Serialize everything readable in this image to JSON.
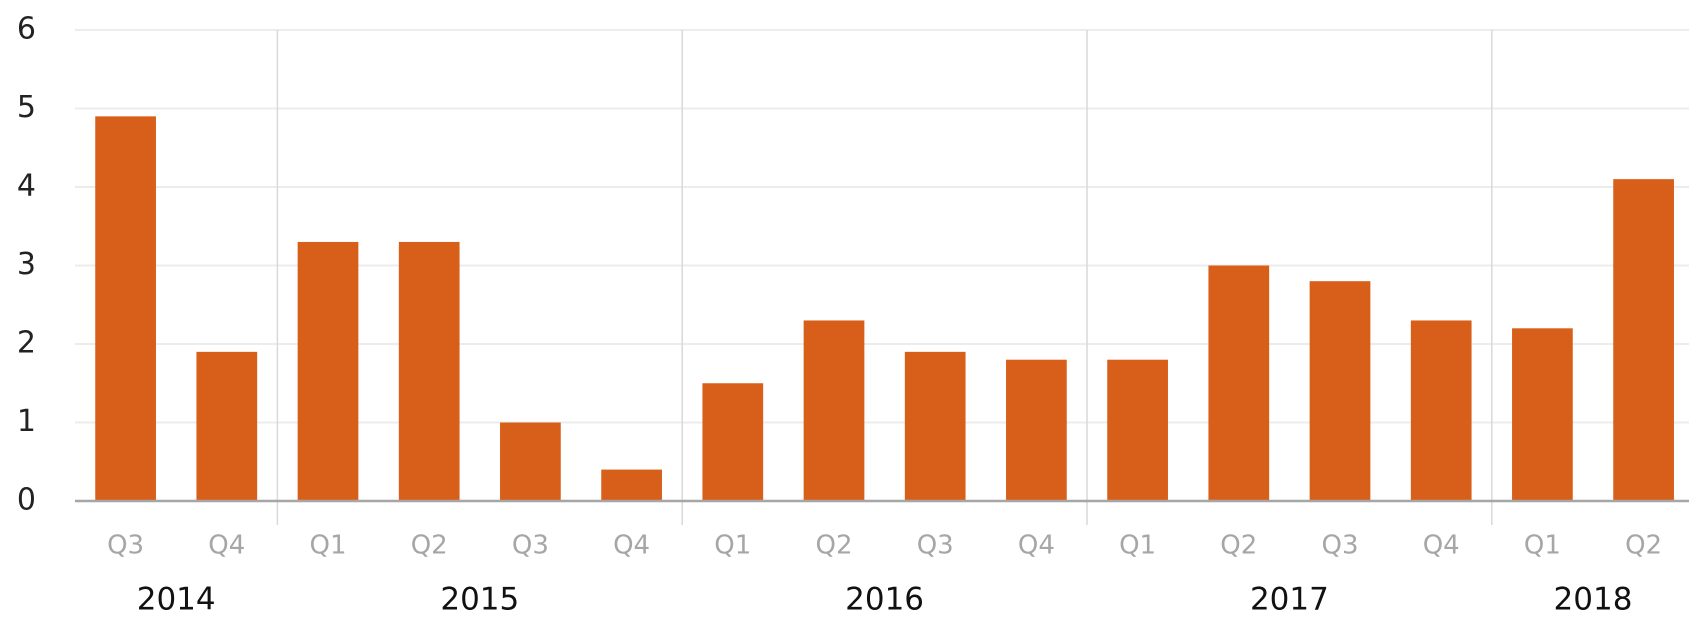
{
  "chart_data": {
    "type": "bar",
    "color": "#d85f19",
    "grid": true,
    "ylim": [
      0,
      6
    ],
    "yticks": [
      0,
      1,
      2,
      3,
      4,
      5,
      6
    ],
    "groups": [
      {
        "name": "2014",
        "categories": [
          "Q3",
          "Q4"
        ],
        "values": [
          4.9,
          1.9
        ]
      },
      {
        "name": "2015",
        "categories": [
          "Q1",
          "Q2",
          "Q3",
          "Q4"
        ],
        "values": [
          3.3,
          3.3,
          1.0,
          0.4
        ]
      },
      {
        "name": "2016",
        "categories": [
          "Q1",
          "Q2",
          "Q3",
          "Q4"
        ],
        "values": [
          1.5,
          2.3,
          1.9,
          1.8
        ]
      },
      {
        "name": "2017",
        "categories": [
          "Q1",
          "Q2",
          "Q3",
          "Q4"
        ],
        "values": [
          1.8,
          3.0,
          2.8,
          2.3
        ]
      },
      {
        "name": "2018",
        "categories": [
          "Q1",
          "Q2"
        ],
        "values": [
          2.2,
          4.1
        ]
      }
    ]
  }
}
